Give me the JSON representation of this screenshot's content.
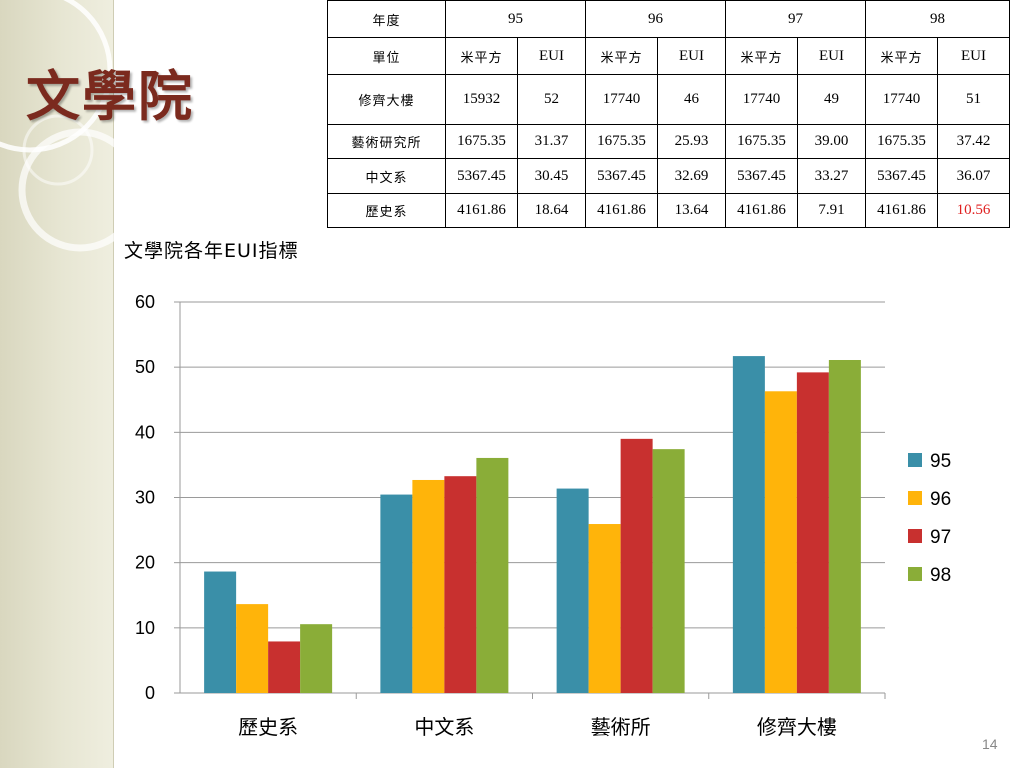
{
  "slide": {
    "title": "文學院",
    "page_number": "14"
  },
  "table": {
    "header": {
      "label": "年度",
      "years": [
        "95",
        "96",
        "97",
        "98"
      ]
    },
    "units": {
      "label": "單位",
      "values": [
        "米平方",
        "EUI",
        "米平方",
        "EUI",
        "米平方",
        "EUI",
        "米平方",
        "EUI"
      ]
    },
    "rows": [
      {
        "name": "修齊大樓",
        "cells": [
          "15932",
          "52",
          "17740",
          "46",
          "17740",
          "49",
          "17740",
          "51"
        ]
      },
      {
        "name": "藝術研究所",
        "cells": [
          "1675.35",
          "31.37",
          "1675.35",
          "25.93",
          "1675.35",
          "39.00",
          "1675.35",
          "37.42"
        ]
      },
      {
        "name": "中文系",
        "cells": [
          "5367.45",
          "30.45",
          "5367.45",
          "32.69",
          "5367.45",
          "33.27",
          "5367.45",
          "36.07"
        ]
      },
      {
        "name": "歷史系",
        "cells": [
          "4161.86",
          "18.64",
          "4161.86",
          "13.64",
          "4161.86",
          "7.91",
          "4161.86",
          "10.56"
        ]
      }
    ],
    "highlight_color": "#e02020"
  },
  "chart_data": {
    "type": "bar",
    "title": "文學院各年EUI指標",
    "categories": [
      "歷史系",
      "中文系",
      "藝術所",
      "修齊大樓"
    ],
    "series": [
      {
        "name": "95",
        "color": "#3a8fa8",
        "values": [
          18.64,
          30.45,
          31.37,
          51.7
        ]
      },
      {
        "name": "96",
        "color": "#ffb40a",
        "values": [
          13.64,
          32.69,
          25.93,
          46.3
        ]
      },
      {
        "name": "97",
        "color": "#c8302f",
        "values": [
          7.91,
          33.27,
          39.0,
          49.2
        ]
      },
      {
        "name": "98",
        "color": "#8aad38",
        "values": [
          10.56,
          36.07,
          37.42,
          51.1
        ]
      }
    ],
    "ylim": [
      0,
      60
    ],
    "yticks": [
      0,
      10,
      20,
      30,
      40,
      50,
      60
    ],
    "grid": true,
    "legend": "right"
  }
}
